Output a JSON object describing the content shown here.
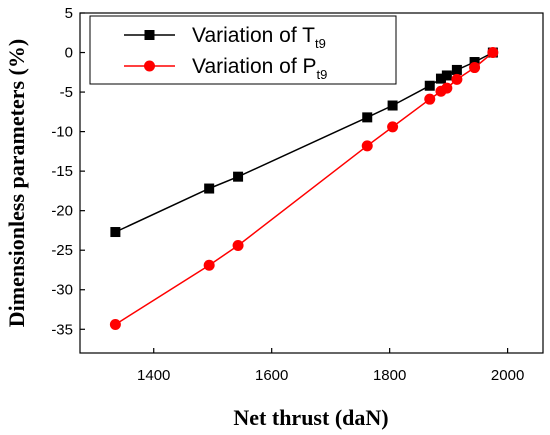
{
  "chart_data": {
    "type": "line",
    "xlabel": "Net thrust (daN)",
    "ylabel": "Dimensionless parameters (%)",
    "xlim": [
      1275,
      2060
    ],
    "ylim": [
      -38,
      5
    ],
    "xticks": [
      1400,
      1600,
      1800,
      2000
    ],
    "yticks": [
      5,
      0,
      -5,
      -10,
      -15,
      -20,
      -25,
      -30,
      -35
    ],
    "grid": false,
    "legend_position": "top-left",
    "series": [
      {
        "name_main": "Variation of T",
        "name_sub": "t9",
        "color": "#000000",
        "marker": "square",
        "x": [
          1335,
          1494,
          1543,
          1762,
          1805,
          1868,
          1887,
          1897,
          1914,
          1944,
          1975
        ],
        "y": [
          -22.7,
          -17.2,
          -15.7,
          -8.2,
          -6.7,
          -4.2,
          -3.3,
          -2.9,
          -2.2,
          -1.2,
          0
        ]
      },
      {
        "name_main": "Variation of P",
        "name_sub": "t9",
        "color": "#ff0000",
        "marker": "circle",
        "x": [
          1335,
          1494,
          1543,
          1762,
          1805,
          1868,
          1887,
          1897,
          1914,
          1944,
          1975
        ],
        "y": [
          -34.4,
          -26.9,
          -24.4,
          -11.8,
          -9.4,
          -5.9,
          -4.9,
          -4.5,
          -3.4,
          -1.9,
          0
        ]
      }
    ]
  }
}
